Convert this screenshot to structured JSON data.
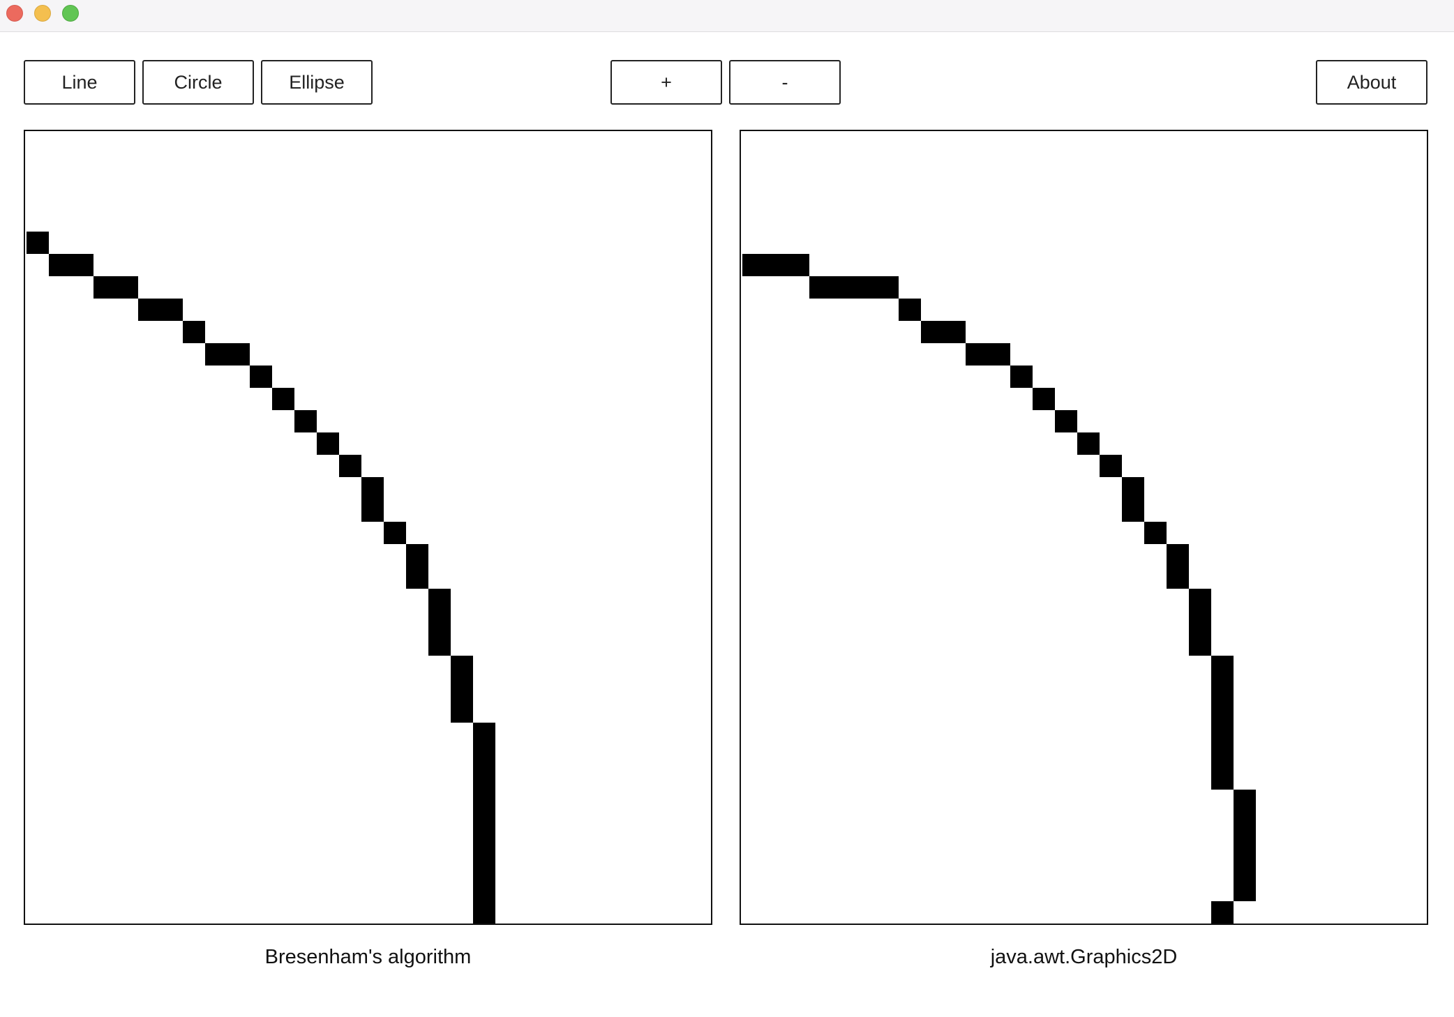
{
  "window": {
    "controls": [
      {
        "name": "close-button",
        "color": "#ec6a5e"
      },
      {
        "name": "minimize-button",
        "color": "#f4bf4f"
      },
      {
        "name": "zoom-button",
        "color": "#61c554"
      }
    ]
  },
  "toolbar": {
    "line_label": "Line",
    "circle_label": "Circle",
    "ellipse_label": "Ellipse",
    "zoom_in_label": "+",
    "zoom_out_label": "-",
    "about_label": "About"
  },
  "panels": {
    "left": {
      "caption": "Bresenham's algorithm",
      "pixel_color": "#000000"
    },
    "right": {
      "caption": "java.awt.Graphics2D",
      "pixel_color": "#000000"
    }
  }
}
